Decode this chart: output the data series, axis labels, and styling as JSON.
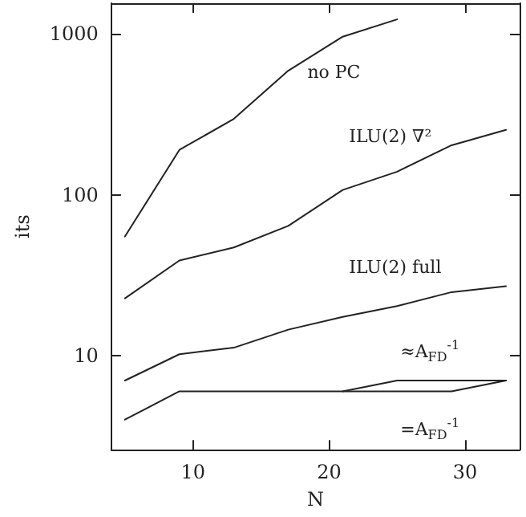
{
  "chart_data": {
    "type": "line",
    "xlabel": "N",
    "ylabel": "its",
    "x": [
      5,
      9,
      13,
      17,
      21,
      25,
      29,
      33
    ],
    "series": [
      {
        "name": "no PC",
        "color": "#222222",
        "x": [
          5,
          9,
          13,
          17,
          21,
          25
        ],
        "values": [
          55,
          190,
          296,
          590,
          960,
          1230
        ]
      },
      {
        "name": "ILU(2) ∇²",
        "color": "#222222",
        "values": [
          22.7,
          39,
          47,
          64,
          107,
          139,
          203,
          253
        ]
      },
      {
        "name": "ILU(2) full",
        "color": "#222222",
        "values": [
          7,
          10.2,
          11.2,
          14.5,
          17.4,
          20.3,
          24.8,
          27
        ]
      },
      {
        "name": "≈A$_{FD}$$^{-1}$",
        "color": "#222222",
        "values": [
          null,
          null,
          null,
          null,
          6,
          7,
          7,
          7
        ]
      },
      {
        "name": "=A$_{FD}$$^{-1}$",
        "color": "#222222",
        "values": [
          4,
          6,
          6,
          6,
          6,
          6,
          6,
          7
        ]
      }
    ],
    "xlim": [
      4,
      34
    ],
    "xticks": [
      10,
      20,
      30
    ],
    "ylim": [
      2.6,
      1550
    ],
    "yticks": [
      10,
      100,
      1000
    ],
    "log": "y",
    "grid": false,
    "legend": false,
    "marker": "none",
    "line_style": "solid"
  }
}
